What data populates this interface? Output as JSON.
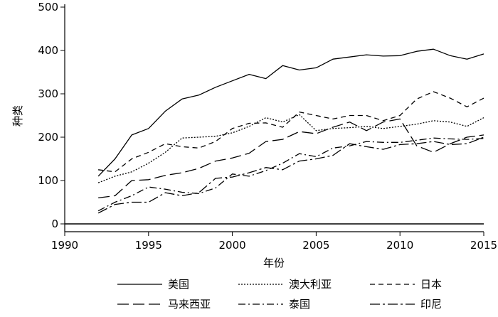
{
  "chart_data": {
    "type": "line",
    "title": "",
    "xlabel": "年份",
    "ylabel": "种类",
    "xlim": [
      1990,
      2015
    ],
    "ylim": [
      0,
      500
    ],
    "x_ticks": [
      1990,
      1995,
      2000,
      2005,
      2010,
      2015
    ],
    "y_ticks": [
      0,
      100,
      200,
      300,
      400,
      500
    ],
    "x": [
      1992,
      1993,
      1994,
      1995,
      1996,
      1997,
      1998,
      1999,
      2000,
      2001,
      2002,
      2003,
      2004,
      2005,
      2006,
      2007,
      2008,
      2009,
      2010,
      2011,
      2012,
      2013,
      2014,
      2015
    ],
    "legend": {
      "placement": "bottom",
      "columns": 3
    },
    "series": [
      {
        "name": "美国",
        "dash": "none",
        "values": [
          110,
          150,
          205,
          220,
          260,
          288,
          297,
          315,
          330,
          345,
          335,
          365,
          355,
          360,
          380,
          385,
          390,
          387,
          388,
          398,
          403,
          388,
          380,
          392
        ]
      },
      {
        "name": "澳大利亚",
        "dash": "2,2",
        "values": [
          95,
          110,
          120,
          140,
          165,
          198,
          200,
          202,
          210,
          225,
          245,
          235,
          252,
          215,
          220,
          222,
          225,
          220,
          225,
          230,
          238,
          235,
          225,
          245
        ]
      },
      {
        "name": "日本",
        "dash": "7,5",
        "values": [
          125,
          120,
          150,
          165,
          185,
          178,
          175,
          190,
          220,
          232,
          233,
          223,
          258,
          250,
          242,
          250,
          250,
          238,
          250,
          288,
          305,
          290,
          270,
          290
        ]
      },
      {
        "name": "马来西亚",
        "dash": "16,6",
        "values": [
          60,
          65,
          100,
          102,
          112,
          118,
          128,
          145,
          152,
          163,
          190,
          195,
          213,
          208,
          223,
          235,
          215,
          235,
          242,
          180,
          165,
          185,
          200,
          205
        ]
      },
      {
        "name": "泰国",
        "dash": "10,4,2,4",
        "values": [
          30,
          50,
          65,
          85,
          80,
          73,
          70,
          83,
          115,
          110,
          123,
          140,
          162,
          155,
          175,
          180,
          190,
          188,
          188,
          193,
          198,
          196,
          195,
          197
        ]
      },
      {
        "name": "印尼",
        "dash": "14,4,3,4",
        "values": [
          25,
          45,
          50,
          50,
          72,
          65,
          72,
          105,
          108,
          118,
          130,
          125,
          145,
          150,
          158,
          185,
          178,
          172,
          183,
          185,
          190,
          183,
          185,
          200
        ]
      }
    ]
  }
}
